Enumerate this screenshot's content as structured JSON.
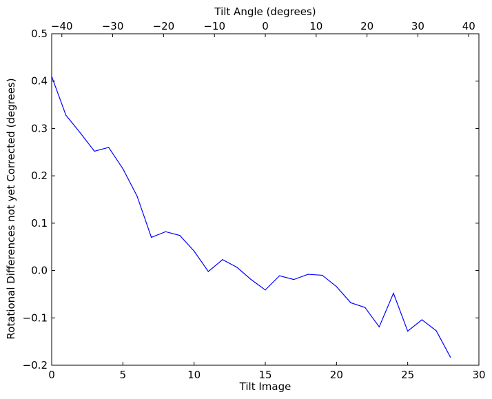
{
  "chart_data": {
    "type": "line",
    "xlabel": "Tilt Image",
    "ylabel": "Rotational Differences not yet Corrected (degrees)",
    "top_xlabel": "Tilt Angle (degrees)",
    "xlim": [
      0,
      30
    ],
    "ylim": [
      -0.2,
      0.5
    ],
    "top_xlim": [
      -42,
      42
    ],
    "x_ticks": [
      "0",
      "5",
      "10",
      "15",
      "20",
      "25",
      "30"
    ],
    "y_ticks": [
      "−0.2",
      "−0.1",
      "0.0",
      "0.1",
      "0.2",
      "0.3",
      "0.4",
      "0.5"
    ],
    "top_x_ticks": [
      "−40",
      "−30",
      "−20",
      "−10",
      "0",
      "10",
      "20",
      "30",
      "40"
    ],
    "grid": false,
    "line_color": "#0000ff",
    "series": [
      {
        "x": [
          0,
          1,
          2,
          3,
          4,
          5,
          6,
          7,
          8,
          9,
          10,
          11,
          12,
          13,
          14,
          15,
          16,
          17,
          18,
          19,
          20,
          21,
          22,
          23,
          24,
          25,
          26,
          27,
          28
        ],
        "values": [
          0.41,
          0.328,
          0.291,
          0.252,
          0.26,
          0.215,
          0.157,
          0.07,
          0.082,
          0.074,
          0.041,
          -0.002,
          0.023,
          0.007,
          -0.019,
          -0.041,
          -0.011,
          -0.019,
          -0.008,
          -0.01,
          -0.034,
          -0.068,
          -0.078,
          -0.119,
          -0.048,
          -0.128,
          -0.104,
          -0.127,
          -0.183
        ]
      }
    ]
  }
}
